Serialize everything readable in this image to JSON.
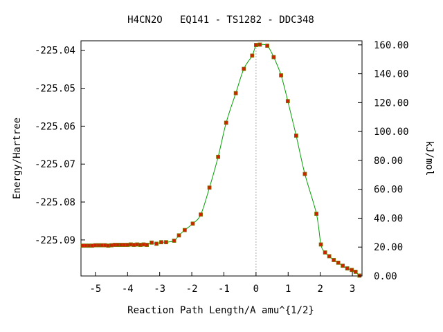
{
  "chart_data": {
    "type": "scatter",
    "title": "H4CN2O   EQ141 - TS1282 - DDC348",
    "xlabel": "Reaction Path Length/A amu^{1/2}",
    "ylabel": "Energy/Hartree",
    "y2label": "kJ/mol",
    "xlim": [
      -5.45,
      3.3
    ],
    "ylim": [
      -225.0995,
      -225.0375
    ],
    "y2lim": [
      0,
      162.8
    ],
    "x_ticks": [
      -5,
      -4,
      -3,
      -2,
      -1,
      0,
      1,
      2,
      3
    ],
    "x_tick_labels": [
      "-5",
      "-4",
      "-3",
      "-2",
      "-1",
      "0",
      "1",
      "2",
      "3"
    ],
    "y_ticks": [
      -225.04,
      -225.05,
      -225.06,
      -225.07,
      -225.08,
      -225.09
    ],
    "y_tick_labels": [
      "-225.04",
      "-225.05",
      "-225.06",
      "-225.07",
      "-225.08",
      "-225.09"
    ],
    "y2_ticks": [
      0,
      20,
      40,
      60,
      80,
      100,
      120,
      140,
      160
    ],
    "y2_tick_labels": [
      "0.00",
      "20.00",
      "40.00",
      "60.00",
      "80.00",
      "100.00",
      "120.00",
      "140.00",
      "160.00"
    ],
    "ts_x": 0,
    "grid": false,
    "legend": "none",
    "colors": {
      "curve": "#00a000",
      "marker_fill": "#cc2200",
      "marker_edge": "#777700",
      "ts_line": "#aaaaaa",
      "axis": "#000000"
    },
    "x": [
      -5.4,
      -5.3,
      -5.2,
      -5.1,
      -5.0,
      -4.9,
      -4.8,
      -4.7,
      -4.6,
      -4.5,
      -4.4,
      -4.3,
      -4.2,
      -4.1,
      -4.0,
      -3.9,
      -3.8,
      -3.7,
      -3.6,
      -3.5,
      -3.4,
      -3.25,
      -3.1,
      -2.95,
      -2.8,
      -2.55,
      -2.4,
      -2.22,
      -1.97,
      -1.72,
      -1.45,
      -1.18,
      -0.93,
      -0.63,
      -0.38,
      -0.12,
      0,
      0.12,
      0.35,
      0.55,
      0.78,
      0.99,
      1.25,
      1.52,
      1.88,
      2.02,
      2.15,
      2.28,
      2.42,
      2.56,
      2.7,
      2.84,
      2.98,
      3.1,
      3.22
    ],
    "y": [
      -225.0915,
      -225.0915,
      -225.0915,
      -225.0915,
      -225.0914,
      -225.0914,
      -225.0914,
      -225.0914,
      -225.0915,
      -225.0914,
      -225.0913,
      -225.0913,
      -225.0913,
      -225.0913,
      -225.0913,
      -225.0912,
      -225.0913,
      -225.0912,
      -225.0913,
      -225.0912,
      -225.0913,
      -225.0907,
      -225.091,
      -225.0906,
      -225.0906,
      -225.0902,
      -225.0888,
      -225.0874,
      -225.0857,
      -225.0833,
      -225.0762,
      -225.0681,
      -225.0591,
      -225.0513,
      -225.0449,
      -225.0414,
      -225.0386,
      -225.0385,
      -225.0388,
      -225.0418,
      -225.0466,
      -225.0534,
      -225.0625,
      -225.0726,
      -225.0831,
      -225.0912,
      -225.0933,
      -225.0943,
      -225.0953,
      -225.096,
      -225.0968,
      -225.0975,
      -225.0979,
      -225.0984,
      -225.0994
    ]
  }
}
